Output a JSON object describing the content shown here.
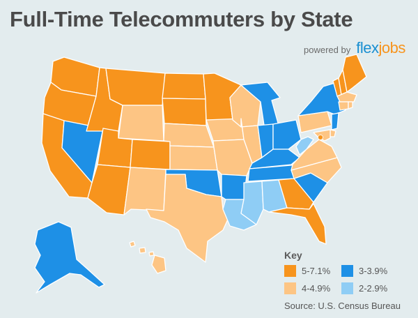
{
  "title": "Full-Time Telecommuters by State",
  "powered_by": "powered by",
  "logo": {
    "main": "flex",
    "sub": "jobs"
  },
  "colors": {
    "high": "#f7941d",
    "mid": "#fdc584",
    "low": "#1e90e6",
    "lowest": "#8fcdf5",
    "border": "#ffffff",
    "background": "#e3ecee"
  },
  "key": {
    "title": "Key",
    "items": [
      {
        "label": "5-7.1%",
        "color": "#f7941d"
      },
      {
        "label": "3-3.9%",
        "color": "#1e90e6"
      },
      {
        "label": "4-4.9%",
        "color": "#fdc584"
      },
      {
        "label": "2-2.9%",
        "color": "#8fcdf5"
      }
    ]
  },
  "source": "Source: U.S. Census Bureau",
  "states": [
    {
      "code": "WA",
      "category": "high"
    },
    {
      "code": "OR",
      "category": "high"
    },
    {
      "code": "CA",
      "category": "high"
    },
    {
      "code": "NV",
      "category": "low"
    },
    {
      "code": "ID",
      "category": "high"
    },
    {
      "code": "MT",
      "category": "high"
    },
    {
      "code": "WY",
      "category": "mid"
    },
    {
      "code": "UT",
      "category": "high"
    },
    {
      "code": "AZ",
      "category": "high"
    },
    {
      "code": "CO",
      "category": "high"
    },
    {
      "code": "NM",
      "category": "mid"
    },
    {
      "code": "ND",
      "category": "high"
    },
    {
      "code": "SD",
      "category": "high"
    },
    {
      "code": "NE",
      "category": "mid"
    },
    {
      "code": "KS",
      "category": "mid"
    },
    {
      "code": "OK",
      "category": "low"
    },
    {
      "code": "TX",
      "category": "mid"
    },
    {
      "code": "MN",
      "category": "high"
    },
    {
      "code": "IA",
      "category": "mid"
    },
    {
      "code": "MO",
      "category": "mid"
    },
    {
      "code": "AR",
      "category": "low"
    },
    {
      "code": "LA",
      "category": "lowest"
    },
    {
      "code": "WI",
      "category": "mid"
    },
    {
      "code": "IL",
      "category": "mid"
    },
    {
      "code": "MI",
      "category": "low"
    },
    {
      "code": "IN",
      "category": "low"
    },
    {
      "code": "OH",
      "category": "low"
    },
    {
      "code": "KY",
      "category": "low"
    },
    {
      "code": "TN",
      "category": "low"
    },
    {
      "code": "MS",
      "category": "lowest"
    },
    {
      "code": "AL",
      "category": "lowest"
    },
    {
      "code": "GA",
      "category": "high"
    },
    {
      "code": "FL",
      "category": "high"
    },
    {
      "code": "SC",
      "category": "low"
    },
    {
      "code": "NC",
      "category": "mid"
    },
    {
      "code": "VA",
      "category": "mid"
    },
    {
      "code": "WV",
      "category": "lowest"
    },
    {
      "code": "PA",
      "category": "mid"
    },
    {
      "code": "NY",
      "category": "low"
    },
    {
      "code": "VT",
      "category": "high"
    },
    {
      "code": "NH",
      "category": "high"
    },
    {
      "code": "ME",
      "category": "high"
    },
    {
      "code": "MA",
      "category": "mid"
    },
    {
      "code": "CT",
      "category": "mid"
    },
    {
      "code": "RI",
      "category": "mid"
    },
    {
      "code": "NJ",
      "category": "low"
    },
    {
      "code": "DE",
      "category": "mid"
    },
    {
      "code": "MD",
      "category": "mid"
    },
    {
      "code": "DC",
      "category": "high"
    },
    {
      "code": "AK",
      "category": "low"
    },
    {
      "code": "HI",
      "category": "mid"
    }
  ]
}
